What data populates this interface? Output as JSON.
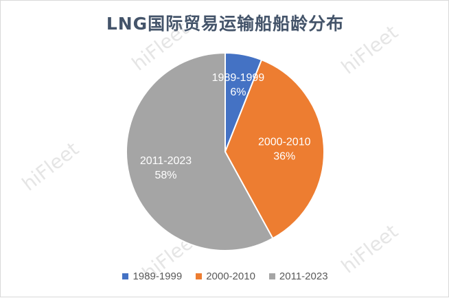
{
  "chart_data": {
    "type": "pie",
    "title": "LNG国际贸易运输船船龄分布",
    "categories": [
      "1989-1999",
      "2000-2010",
      "2011-2023"
    ],
    "values": [
      6,
      36,
      58
    ],
    "value_labels": [
      "6%",
      "36%",
      "58%"
    ],
    "colors": [
      "#4472c4",
      "#ed7d31",
      "#a5a5a5"
    ],
    "legend_position": "bottom"
  },
  "watermark": {
    "text": "hiFleet"
  }
}
